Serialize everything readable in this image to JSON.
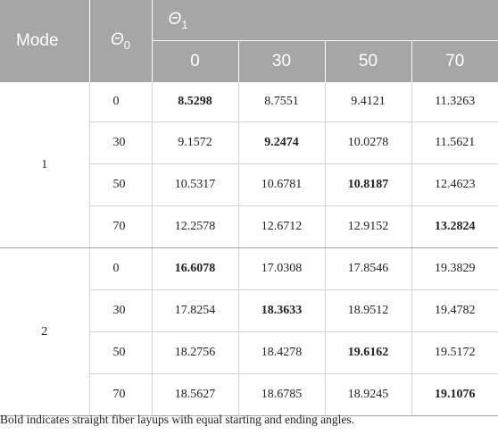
{
  "table": {
    "header": {
      "mode": "Mode",
      "theta0": "Θ",
      "theta0_sub": "0",
      "theta1": "Θ",
      "theta1_sub": "1",
      "theta1_values": [
        "0",
        "30",
        "50",
        "70"
      ]
    },
    "groups": [
      {
        "mode": "1",
        "rows": [
          {
            "theta0": "0",
            "values": [
              "8.5298",
              "8.7551",
              "9.4121",
              "11.3263"
            ],
            "bold_index": 0
          },
          {
            "theta0": "30",
            "values": [
              "9.1572",
              "9.2474",
              "10.0278",
              "11.5621"
            ],
            "bold_index": 1
          },
          {
            "theta0": "50",
            "values": [
              "10.5317",
              "10.6781",
              "10.8187",
              "12.4623"
            ],
            "bold_index": 2
          },
          {
            "theta0": "70",
            "values": [
              "12.2578",
              "12.6712",
              "12.9152",
              "13.2824"
            ],
            "bold_index": 3
          }
        ]
      },
      {
        "mode": "2",
        "rows": [
          {
            "theta0": "0",
            "values": [
              "16.6078",
              "17.0308",
              "17.8546",
              "19.3829"
            ],
            "bold_index": 0
          },
          {
            "theta0": "30",
            "values": [
              "17.8254",
              "18.3633",
              "18.9512",
              "19.4782"
            ],
            "bold_index": 1
          },
          {
            "theta0": "50",
            "values": [
              "18.2756",
              "18.4278",
              "19.6162",
              "19.5172"
            ],
            "bold_index": 2
          },
          {
            "theta0": "70",
            "values": [
              "18.5627",
              "18.6785",
              "18.9245",
              "19.1076"
            ],
            "bold_index": 3
          }
        ]
      }
    ],
    "footnote": "Bold indicates straight fiber layups with equal starting and ending angles."
  },
  "colors": {
    "header_bg": "#a6a6a6",
    "header_text": "#ffffff",
    "grid_line": "#d3d3d3",
    "text": "#222222"
  }
}
